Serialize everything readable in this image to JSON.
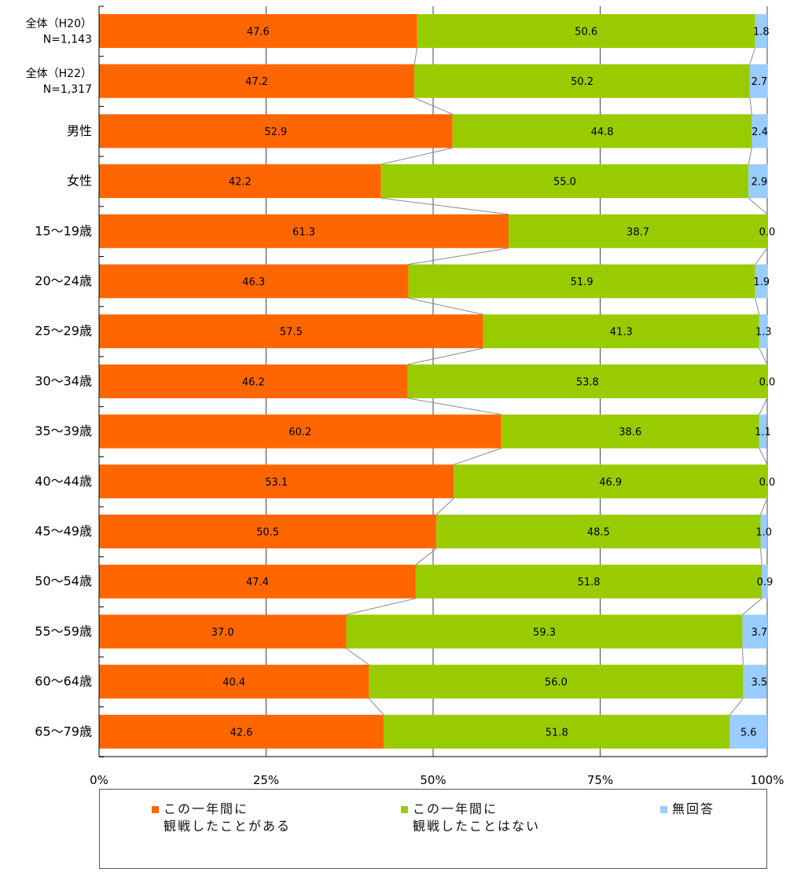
{
  "chart_data": {
    "type": "bar",
    "orientation": "horizontal",
    "stacked": "percent",
    "categories": [
      [
        "全体（H20）",
        "N=1,143"
      ],
      [
        "全体（H22）",
        "N=1,317"
      ],
      [
        "男性"
      ],
      [
        "女性"
      ],
      [
        "15～19歳"
      ],
      [
        "20～24歳"
      ],
      [
        "25～29歳"
      ],
      [
        "30～34歳"
      ],
      [
        "35～39歳"
      ],
      [
        "40～44歳"
      ],
      [
        "45～49歳"
      ],
      [
        "50～54歳"
      ],
      [
        "55～59歳"
      ],
      [
        "60～64歳"
      ],
      [
        "65～79歳"
      ]
    ],
    "series": [
      {
        "name": "この一年間に\n観戦したことがある",
        "color": "#ff6600",
        "values": [
          47.6,
          47.2,
          52.9,
          42.2,
          61.3,
          46.3,
          57.5,
          46.2,
          60.2,
          53.1,
          50.5,
          47.4,
          37.0,
          40.4,
          42.6
        ],
        "labels": [
          "47.6",
          "47.2",
          "52.9",
          "42.2",
          "61.3",
          "46.3",
          "57.5",
          "46.2",
          "60.2",
          "53.1",
          "50.5",
          "47.4",
          "37.0",
          "40.4",
          "42.6"
        ]
      },
      {
        "name": "この一年間に\n観戦したことはない",
        "color": "#99cc00",
        "values": [
          50.6,
          50.2,
          44.8,
          55.0,
          38.7,
          51.9,
          41.3,
          53.8,
          38.6,
          46.9,
          48.5,
          51.8,
          59.3,
          56.0,
          51.8
        ],
        "labels": [
          "50.6",
          "50.2",
          "44.8",
          "55.0",
          "38.7",
          "51.9",
          "41.3",
          "53.8",
          "38.6",
          "46.9",
          "48.5",
          "51.8",
          "59.3",
          "56.0",
          "51.8"
        ]
      },
      {
        "name": "無回答",
        "color": "#99ccff",
        "values": [
          1.8,
          2.7,
          2.4,
          2.9,
          0.0,
          1.9,
          1.3,
          0.0,
          1.1,
          0.0,
          1.0,
          0.9,
          3.7,
          3.5,
          5.6
        ],
        "labels": [
          "1.8",
          "2.7",
          "2.4",
          "2.9",
          "0.0",
          "1.9",
          "1.3",
          "0.0",
          "1.1",
          "0.0",
          "1.0",
          "0.9",
          "3.7",
          "3.5",
          "5.6"
        ]
      }
    ],
    "xaxis": {
      "ticks": [
        0,
        25,
        50,
        75,
        100
      ],
      "tick_labels": [
        "0%",
        "25%",
        "50%",
        "75%",
        "100%"
      ],
      "range": [
        0,
        100
      ]
    },
    "grid": "vertical",
    "series_lines": true,
    "legend": "bottom"
  }
}
